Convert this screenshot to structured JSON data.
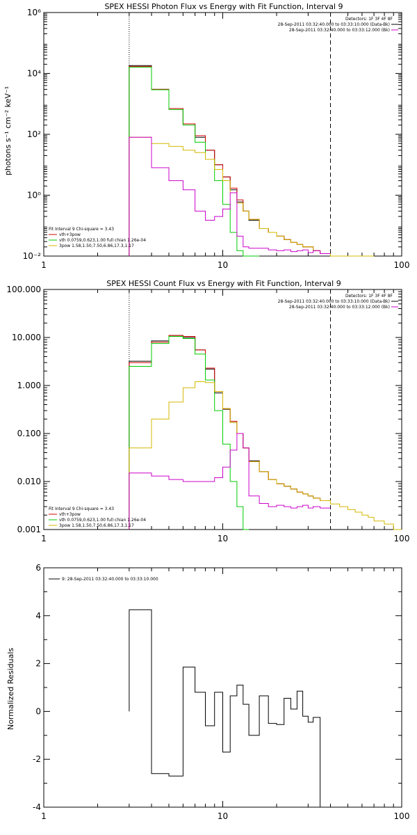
{
  "colors": {
    "black": "#000000",
    "red": "#d40000",
    "green": "#00cc00",
    "magenta": "#cc00cc",
    "yellow": "#d4b800"
  },
  "chart_data": [
    {
      "type": "line",
      "title": "SPEX HESSI Photon Flux vs Energy with Fit Function, Interval 9",
      "xlabel": "",
      "ylabel": "photons s⁻¹ cm⁻² keV⁻¹",
      "xscale": "log",
      "yscale": "log",
      "xlim": [
        1,
        100
      ],
      "ylim": [
        0.01,
        1000000
      ],
      "xticks": [
        1,
        10,
        100
      ],
      "xtick_labels": [
        "1",
        "10",
        "100"
      ],
      "yticks": [
        0.01,
        1,
        100,
        10000,
        1000000
      ],
      "ytick_labels": [
        "10⁻²",
        "10⁰",
        "10²",
        "10⁴",
        "10⁶"
      ],
      "vlines": [
        {
          "x": 3,
          "style": "dotted"
        },
        {
          "x": 40,
          "style": "dashed"
        }
      ],
      "legend_top": {
        "placement": "top-right",
        "header": "Detectors: 1F 3F 4F 8F",
        "entries": [
          {
            "label": "28-Sep-2011 03:32:40.000 to 03:33:10.000 (Data-Bk)",
            "color": "#000000"
          },
          {
            "label": "28-Sep-2011 03:32:40.000 to 03:33:12.000 (Bk)",
            "color": "#cc00cc"
          }
        ]
      },
      "legend_bottom": {
        "placement": "bottom-left",
        "header": "Fit Interval  9    Chi-square = 3.43",
        "entries": [
          {
            "label": "vth+3pow",
            "color": "#d40000"
          },
          {
            "label": "vth 0.0759,0.623,1.00  full chian 1.26e-04",
            "color": "#00cc00"
          },
          {
            "label": "3pow 1.58,1.50,7.50,6.86,17.3,1.17",
            "color": "#d4b800"
          }
        ]
      },
      "bin_edges": [
        3,
        4,
        5,
        6,
        7,
        8,
        9,
        10,
        11,
        12,
        13,
        14,
        16,
        18,
        20,
        22,
        24,
        26,
        28,
        30,
        32,
        35,
        40,
        45,
        50,
        55,
        60,
        65,
        70
      ],
      "series": [
        {
          "name": "Data-Bk",
          "color": "#000000",
          "values": [
            18000,
            3000,
            700,
            220,
            80,
            30,
            10,
            4,
            1.5,
            0.6,
            0.3,
            0.15,
            0.08,
            0.06,
            0.045,
            0.035,
            0.028,
            0.024,
            0.02,
            0.02,
            0.015,
            0.012
          ]
        },
        {
          "name": "vth+3pow",
          "color": "#d40000",
          "values": [
            17000,
            3000,
            700,
            220,
            90,
            30,
            10,
            4,
            1.7,
            0.7,
            0.3,
            0.16,
            0.08,
            0.06,
            0.045,
            0.035,
            0.028,
            0.024,
            0.02,
            0.02,
            0.015,
            0.012
          ]
        },
        {
          "name": "vth",
          "color": "#00cc00",
          "values": [
            16000,
            2900,
            650,
            200,
            55,
            15,
            3,
            0.5,
            0.06,
            0.015,
            0.006,
            0.004
          ]
        },
        {
          "name": "3pow",
          "color": "#d4b800",
          "values": [
            80,
            50,
            40,
            30,
            25,
            15,
            7,
            3,
            1.2,
            0.55,
            0.3,
            0.16,
            0.08,
            0.06,
            0.045,
            0.035,
            0.028,
            0.024,
            0.02,
            0.02,
            0.015,
            0.012,
            0.01,
            0.008,
            0.007,
            0.006,
            0.005,
            0.005
          ]
        },
        {
          "name": "Bk",
          "color": "#cc00cc",
          "values": [
            80,
            8,
            3,
            1.5,
            0.3,
            0.15,
            0.2,
            0.35,
            1.2,
            0.045,
            0.02,
            0.018,
            0.018,
            0.016,
            0.015,
            0.016,
            0.014,
            0.015,
            0.016,
            0.013,
            0.015,
            0.012
          ]
        }
      ]
    },
    {
      "type": "line",
      "title": "SPEX HESSI Count Flux vs Energy with Fit Function, Interval 9",
      "xlabel": "",
      "ylabel": "",
      "xscale": "log",
      "yscale": "log",
      "xlim": [
        1,
        100
      ],
      "ylim": [
        0.001,
        100
      ],
      "xticks": [
        1,
        10,
        100
      ],
      "xtick_labels": [
        "1",
        "10",
        "100"
      ],
      "yticks": [
        0.001,
        0.01,
        0.1,
        1,
        10,
        100
      ],
      "ytick_labels": [
        "0.001",
        "0.010",
        "0.100",
        "1.000",
        "10.000",
        "100.000"
      ],
      "vlines": [
        {
          "x": 3,
          "style": "dotted"
        },
        {
          "x": 40,
          "style": "dashed"
        }
      ],
      "legend_top": {
        "placement": "top-right",
        "header": "Detectors: 1F 3F 4F 8F",
        "entries": [
          {
            "label": "28-Sep-2011 03:32:40.000 to 03:33:10.000 (Data-Bk)",
            "color": "#000000"
          },
          {
            "label": "28-Sep-2011 03:32:40.000 to 03:33:12.000 (Bk)",
            "color": "#cc00cc"
          }
        ]
      },
      "legend_bottom": {
        "placement": "bottom-left",
        "header": "Fit Interval  9    Chi-square = 3.43",
        "entries": [
          {
            "label": "vth+3pow",
            "color": "#d40000"
          },
          {
            "label": "vth 0.0759,0.623,1.00  full chian 1.26e-04",
            "color": "#00cc00"
          },
          {
            "label": "3pow 1.58,1.50,7.50,6.86,17.3,1.17",
            "color": "#d4b800"
          }
        ]
      },
      "bin_edges": [
        3,
        4,
        5,
        6,
        7,
        8,
        9,
        10,
        11,
        12,
        13,
        14,
        16,
        18,
        20,
        22,
        24,
        26,
        28,
        30,
        32,
        35,
        40,
        45,
        50,
        55,
        60,
        65,
        70,
        80,
        90,
        100
      ],
      "series": [
        {
          "name": "Data-Bk",
          "color": "#000000",
          "values": [
            3.2,
            8.5,
            11,
            10,
            5.5,
            2.2,
            0.7,
            0.32,
            0.17,
            0.1,
            0.05,
            0.027,
            0.016,
            0.011,
            0.009,
            0.008,
            0.007,
            0.006,
            0.0055,
            0.005,
            0.0045,
            0.004
          ]
        },
        {
          "name": "vth+3pow",
          "color": "#d40000",
          "values": [
            3.0,
            8.0,
            11,
            10.5,
            5.5,
            2.3,
            0.75,
            0.33,
            0.18,
            0.1,
            0.05,
            0.026,
            0.016,
            0.011,
            0.009,
            0.008,
            0.007,
            0.006,
            0.0055,
            0.005,
            0.0045,
            0.004
          ]
        },
        {
          "name": "vth",
          "color": "#00cc00",
          "values": [
            2.5,
            7.5,
            10.5,
            9.5,
            4.5,
            1.3,
            0.3,
            0.06,
            0.01,
            0.003,
            0.001
          ]
        },
        {
          "name": "3pow",
          "color": "#d4b800",
          "values": [
            0.05,
            0.2,
            0.45,
            0.9,
            1.2,
            1.15,
            0.75,
            0.33,
            0.17,
            0.1,
            0.05,
            0.026,
            0.016,
            0.011,
            0.009,
            0.008,
            0.007,
            0.006,
            0.0055,
            0.005,
            0.0045,
            0.004,
            0.0034,
            0.003,
            0.0026,
            0.0023,
            0.002,
            0.0018,
            0.0015,
            0.0013,
            0.001
          ]
        },
        {
          "name": "Bk",
          "color": "#cc00cc",
          "values": [
            0.015,
            0.013,
            0.011,
            0.01,
            0.01,
            0.01,
            0.012,
            0.02,
            0.045,
            0.1,
            0.05,
            0.005,
            0.0035,
            0.003,
            0.0032,
            0.003,
            0.0028,
            0.003,
            0.0032,
            0.0028,
            0.003,
            0.0028
          ]
        }
      ]
    },
    {
      "type": "line",
      "title": "",
      "xlabel": "",
      "ylabel": "Normalized Residuals",
      "xscale": "log",
      "yscale": "linear",
      "xlim": [
        1,
        100
      ],
      "ylim": [
        -4,
        6
      ],
      "xticks": [
        1,
        10,
        100
      ],
      "xtick_labels": [
        "1",
        "10",
        "100"
      ],
      "yticks": [
        -4,
        -2,
        0,
        2,
        4,
        6
      ],
      "ytick_labels": [
        "-4",
        "-2",
        "0",
        "2",
        "4",
        "6"
      ],
      "legend_top": {
        "placement": "top-left",
        "header": "",
        "entries": [
          {
            "label": "9: 28-Sep-2011 03:32:40.000 to 03:33:10.000",
            "color": "#000000"
          }
        ]
      },
      "bin_edges": [
        3,
        4,
        5,
        6,
        7,
        8,
        9,
        10,
        11,
        12,
        13,
        14,
        16,
        18,
        20,
        22,
        24,
        26,
        28,
        30,
        32,
        35,
        40
      ],
      "series": [
        {
          "name": "9",
          "color": "#000000",
          "values": [
            4.25,
            -2.6,
            -2.7,
            1.85,
            0.8,
            -0.6,
            0.8,
            -1.7,
            0.65,
            1.1,
            0.3,
            -1.0,
            0.65,
            -0.5,
            -0.55,
            0.55,
            0.1,
            0.85,
            -0.2,
            -0.45,
            -0.25
          ]
        }
      ]
    }
  ]
}
